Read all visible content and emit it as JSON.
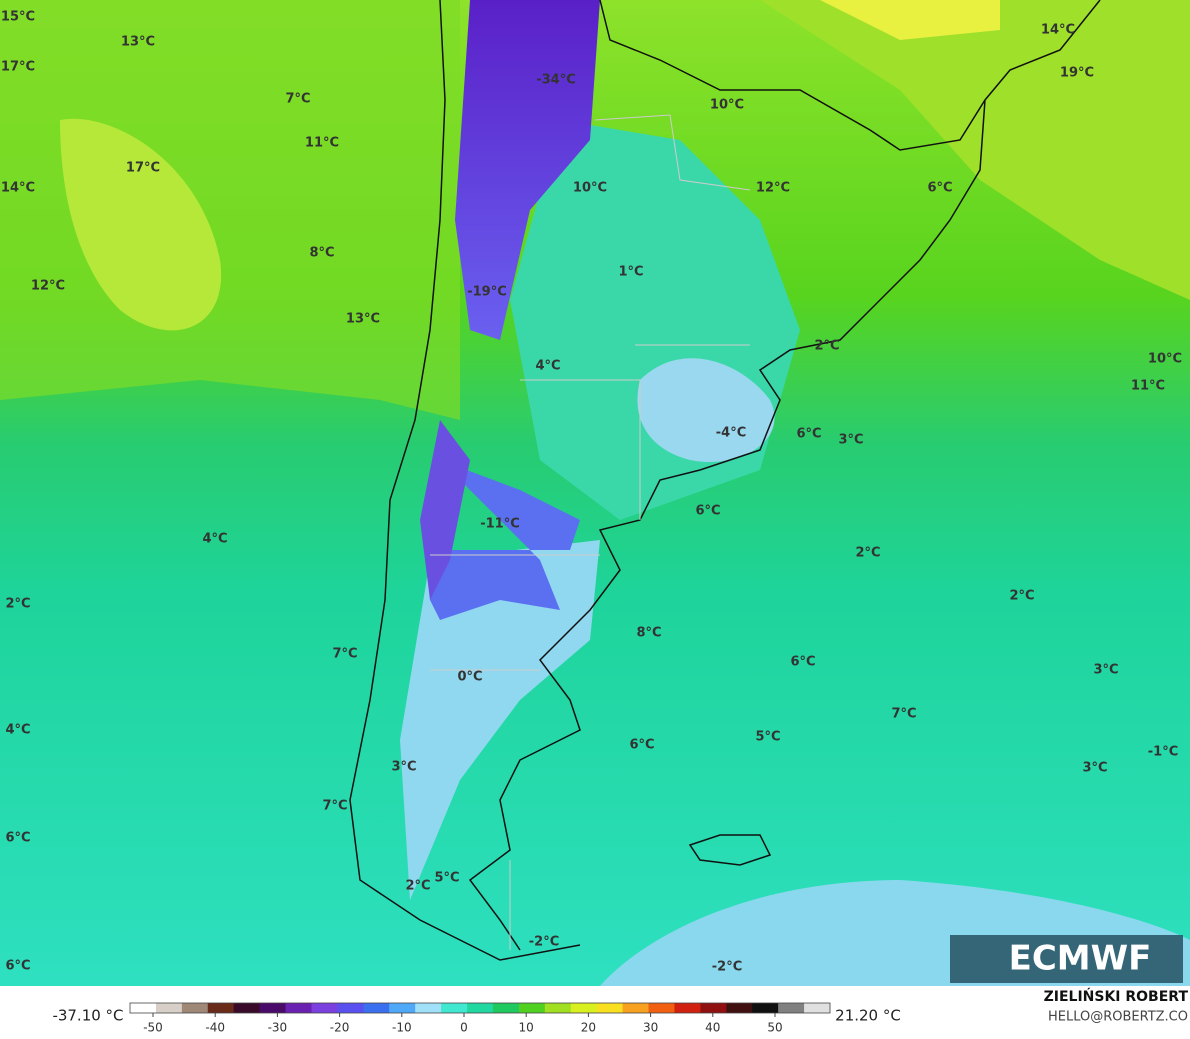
{
  "map": {
    "labels": [
      "15°C",
      "13°C",
      "17°C",
      "7°C",
      "11°C",
      "17°C",
      "14°C",
      "8°C",
      "12°C",
      "13°C",
      "-34°C",
      "10°C",
      "10°C",
      "12°C",
      "6°C",
      "14°C",
      "19°C",
      "1°C",
      "-19°C",
      "4°C",
      "2°C",
      "10°C",
      "11°C",
      "-4°C",
      "6°C",
      "3°C",
      "-11°C",
      "6°C",
      "4°C",
      "2°C",
      "2°C",
      "2°C",
      "8°C",
      "7°C",
      "6°C",
      "3°C",
      "0°C",
      "7°C",
      "4°C",
      "5°C",
      "6°C",
      "-1°C",
      "3°C",
      "3°C",
      "7°C",
      "6°C",
      "5°C",
      "2°C",
      "-2°C",
      "6°C",
      "-2°C"
    ],
    "logo": "ECMWF"
  },
  "colorbar": {
    "min_label": "-37.10 °C",
    "max_label": "21.20 °C",
    "ticks": [
      -50,
      -40,
      -30,
      -20,
      -10,
      0,
      10,
      20,
      30,
      40,
      50
    ],
    "colors": [
      "#ffffff",
      "#d8d0c8",
      "#a08878",
      "#6a2a1a",
      "#3a0a2a",
      "#4a0a6a",
      "#6a20b0",
      "#7a40e0",
      "#5a50f0",
      "#3a70f0",
      "#50a8f8",
      "#a0e0f8",
      "#40e8d0",
      "#20d8a0",
      "#20c860",
      "#50d020",
      "#a0e020",
      "#d8f020",
      "#f8e020",
      "#f8a020",
      "#f06010",
      "#d02010",
      "#901010",
      "#401010",
      "#101010",
      "#808080",
      "#e0e0e0"
    ]
  },
  "footer": {
    "author": "ZIELIŃSKI ROBERT",
    "email": "HELLO@ROBERTZ.CO"
  }
}
